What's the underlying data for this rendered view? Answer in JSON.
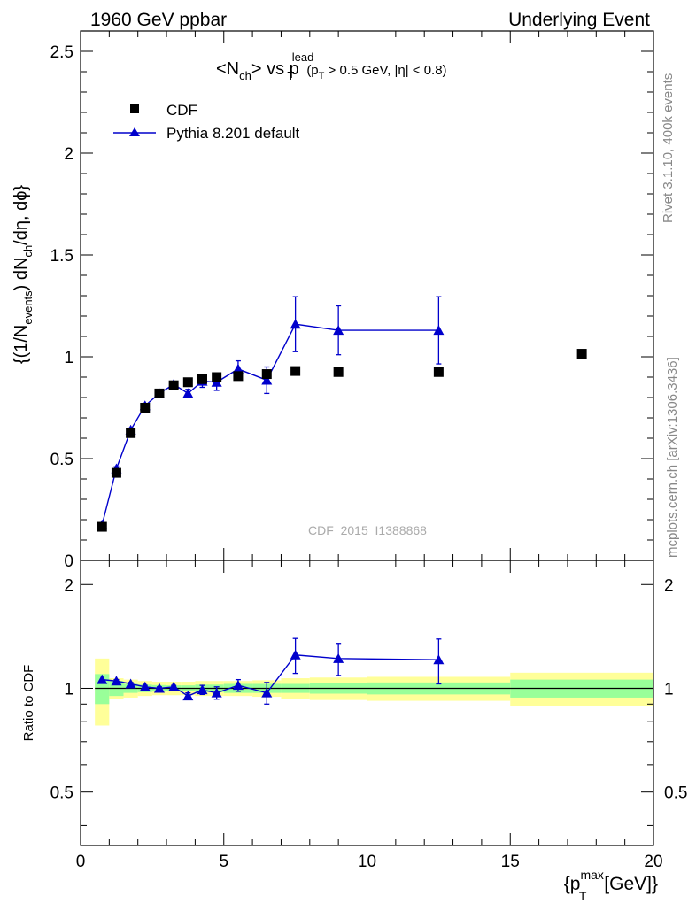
{
  "header": {
    "left": "1960 GeV ppbar",
    "right": "Underlying Event"
  },
  "side_labels": {
    "rivet": "Rivet 3.1.10,  400k events",
    "mcplots": "mcplots.cern.ch [arXiv:1306.3436]"
  },
  "watermark": "CDF_2015_I1388868",
  "colors": {
    "data": "#000000",
    "mc": "#0000cc",
    "band_inner": "#99ff99",
    "band_outer": "#ffff99",
    "side_text": "#888888",
    "watermark": "#aaaaaa"
  },
  "chart_data": [
    {
      "type": "scatter",
      "panel": "main",
      "title": {
        "lhs": "<N",
        "lhs_sub": "ch",
        "mid": "> vs p",
        "mid_sup": "lead",
        "mid_sub": "T",
        "cut_open": "(p",
        "cut_sub": "T",
        "cut_rest": " > 0.5 GeV, |η| < 0.8)"
      },
      "ylabel": {
        "a": "{(1/N",
        "a_sub": "events",
        "b": ") dN",
        "b_sub": "ch",
        "c": "/dη, dϕ}"
      },
      "xlim": [
        0,
        20
      ],
      "ylim": [
        0,
        2.6
      ],
      "yticks": [
        "0",
        "0.5",
        "1",
        "1.5",
        "2",
        "2.5"
      ],
      "ytick_values": [
        0,
        0.5,
        1,
        1.5,
        2,
        2.5
      ],
      "legend": {
        "position": "top-left",
        "entries": [
          "CDF",
          "Pythia 8.201 default"
        ]
      },
      "series": [
        {
          "name": "CDF",
          "marker": "square",
          "x": [
            0.75,
            1.25,
            1.75,
            2.25,
            2.75,
            3.25,
            3.75,
            4.25,
            4.75,
            5.5,
            6.5,
            7.5,
            9.0,
            12.5,
            17.5
          ],
          "y": [
            0.165,
            0.43,
            0.625,
            0.75,
            0.82,
            0.86,
            0.875,
            0.89,
            0.9,
            0.905,
            0.915,
            0.93,
            0.925,
            0.925,
            1.015
          ]
        },
        {
          "name": "Pythia 8.201 default",
          "marker": "triangle",
          "x": [
            0.75,
            1.25,
            1.75,
            2.25,
            2.75,
            3.25,
            3.75,
            4.25,
            4.75,
            5.5,
            6.5,
            7.5,
            9.0,
            12.5
          ],
          "y": [
            0.175,
            0.45,
            0.64,
            0.76,
            0.82,
            0.865,
            0.82,
            0.88,
            0.875,
            0.94,
            0.885,
            1.16,
            1.13,
            1.13
          ],
          "yerr": [
            0.005,
            0.01,
            0.01,
            0.01,
            0.01,
            0.01,
            0.02,
            0.03,
            0.04,
            0.04,
            0.065,
            0.135,
            0.12,
            0.165
          ]
        }
      ]
    },
    {
      "type": "scatter",
      "panel": "ratio",
      "ylabel": "Ratio to CDF",
      "xlabel": {
        "open": "{p",
        "sup": "max",
        "sub": "T",
        "rest": " [GeV]}"
      },
      "xlim": [
        0,
        20
      ],
      "ylim": [
        0.35,
        2.35
      ],
      "xticks": [
        "0",
        "5",
        "10",
        "15",
        "20"
      ],
      "xtick_values": [
        0,
        5,
        10,
        15,
        20
      ],
      "yticks": [
        "0.5",
        "1",
        "2"
      ],
      "ytick_values": [
        0.5,
        1,
        2
      ],
      "reference_line": 1,
      "uncertainty_bands": {
        "bin_edges": [
          0.5,
          1.0,
          1.5,
          2.0,
          2.5,
          3.0,
          3.5,
          4.0,
          4.5,
          5.0,
          6.0,
          7.0,
          8.0,
          10.0,
          15.0,
          20.0
        ],
        "inner_lo": [
          0.9,
          0.95,
          0.97,
          0.975,
          0.978,
          0.98,
          0.98,
          0.975,
          0.975,
          0.97,
          0.97,
          0.97,
          0.965,
          0.96,
          0.94
        ],
        "inner_hi": [
          1.1,
          1.05,
          1.03,
          1.025,
          1.022,
          1.02,
          1.02,
          1.025,
          1.025,
          1.03,
          1.03,
          1.03,
          1.035,
          1.04,
          1.06
        ],
        "outer_lo": [
          0.78,
          0.93,
          0.94,
          0.95,
          0.955,
          0.955,
          0.955,
          0.95,
          0.95,
          0.95,
          0.945,
          0.93,
          0.925,
          0.92,
          0.89
        ],
        "outer_hi": [
          1.22,
          1.07,
          1.06,
          1.05,
          1.045,
          1.045,
          1.045,
          1.05,
          1.05,
          1.05,
          1.055,
          1.07,
          1.075,
          1.08,
          1.11
        ]
      },
      "series": [
        {
          "name": "Pythia 8.201 default",
          "marker": "triangle",
          "x": [
            0.75,
            1.25,
            1.75,
            2.25,
            2.75,
            3.25,
            3.75,
            4.25,
            4.75,
            5.5,
            6.5,
            7.5,
            9.0,
            12.5
          ],
          "y": [
            1.06,
            1.05,
            1.03,
            1.01,
            1.0,
            1.01,
            0.95,
            0.99,
            0.97,
            1.02,
            0.97,
            1.25,
            1.22,
            1.21
          ],
          "yerr": [
            0.005,
            0.01,
            0.01,
            0.01,
            0.01,
            0.01,
            0.02,
            0.03,
            0.04,
            0.04,
            0.07,
            0.145,
            0.13,
            0.18
          ]
        }
      ]
    }
  ]
}
